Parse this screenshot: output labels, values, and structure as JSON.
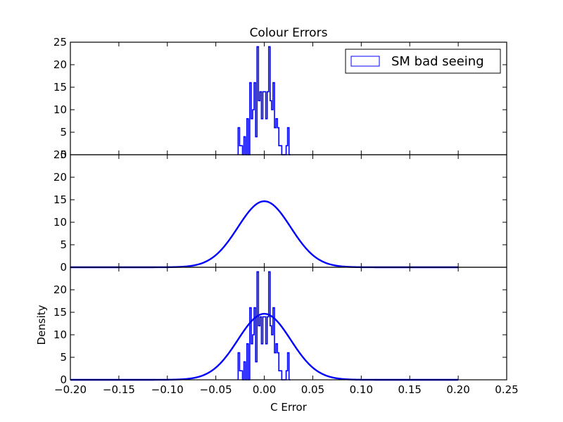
{
  "chart_data": {
    "type": "histogram-stack",
    "title": "Colour Errors",
    "xlabel": "C Error",
    "ylabel": "Density",
    "xlim": [
      -0.2,
      0.25
    ],
    "x_ticks": [
      -0.2,
      -0.15,
      -0.1,
      -0.05,
      0.0,
      0.05,
      0.1,
      0.15,
      0.2,
      0.25
    ],
    "x_tick_labels": [
      "−0.20",
      "−0.15",
      "−0.10",
      "−0.05",
      "0.00",
      "0.05",
      "0.10",
      "0.15",
      "0.20",
      "0.25"
    ],
    "color": "#0000ff",
    "panels": [
      {
        "name": "histogram",
        "ylim": [
          0,
          25
        ],
        "y_ticks": [
          0,
          5,
          10,
          15,
          20,
          25
        ],
        "y_tick_labels": [
          "0",
          "5",
          "10",
          "15",
          "20",
          "25"
        ],
        "legend": {
          "label": "SM bad seeing",
          "location": "top-right"
        },
        "series": [
          {
            "name": "SM bad seeing",
            "kind": "step-outline",
            "edges": [
              -0.027,
              -0.0255,
              -0.024,
              -0.0225,
              -0.021,
              -0.0195,
              -0.018,
              -0.0165,
              -0.015,
              -0.0135,
              -0.012,
              -0.0105,
              -0.009,
              -0.0075,
              -0.006,
              -0.0045,
              -0.003,
              -0.0015,
              0.0,
              0.0015,
              0.003,
              0.0045,
              0.006,
              0.0075,
              0.009,
              0.0105,
              0.012,
              0.0135,
              0.015,
              0.0165,
              0.018,
              0.0195,
              0.021,
              0.0225,
              0.024,
              0.0255,
              0.027
            ],
            "values": [
              6,
              2,
              2,
              0,
              4,
              0,
              8,
              0,
              16,
              8,
              10,
              16,
              4,
              24,
              12,
              14,
              8,
              14,
              14,
              8,
              14,
              24,
              12,
              10,
              16,
              6,
              8,
              6,
              2,
              2,
              0,
              0,
              0,
              2,
              6,
              0
            ]
          }
        ]
      },
      {
        "name": "density",
        "ylim": [
          0,
          25
        ],
        "y_ticks": [
          0,
          5,
          10,
          15,
          20,
          25
        ],
        "y_tick_labels": [
          "0",
          "5",
          "10",
          "15",
          "20",
          "25"
        ],
        "series": [
          {
            "kind": "gaussian-curve",
            "mean": 0.0,
            "sigma": 0.0272,
            "xrange": [
              -0.2,
              0.2
            ]
          }
        ]
      },
      {
        "name": "combined",
        "ylim": [
          0,
          25
        ],
        "y_ticks": [
          0,
          5,
          10,
          15,
          20
        ],
        "y_tick_labels": [
          "0",
          "5",
          "10",
          "15",
          "20"
        ],
        "series": [
          {
            "kind": "step-outline",
            "ref": "histogram"
          },
          {
            "kind": "gaussian-curve",
            "ref": "density"
          }
        ]
      }
    ]
  }
}
